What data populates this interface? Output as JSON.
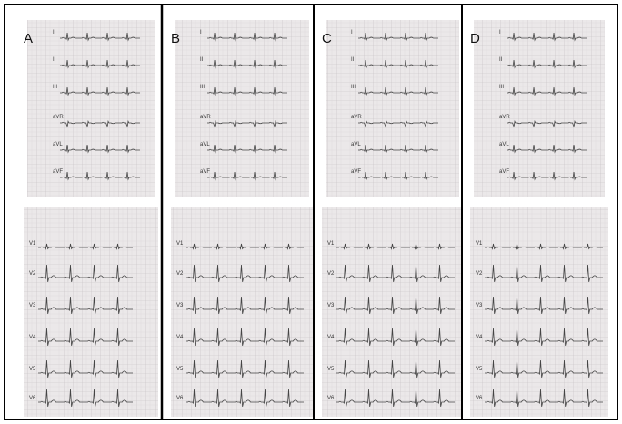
{
  "panels": [
    {
      "label": "A"
    },
    {
      "label": "B"
    },
    {
      "label": "C"
    },
    {
      "label": "D"
    }
  ],
  "top_leads": [
    "I",
    "II",
    "III",
    "aVR",
    "aVL",
    "aVF"
  ],
  "bottom_leads": [
    "V1",
    "V2",
    "V3",
    "V4",
    "V5",
    "V6"
  ]
}
